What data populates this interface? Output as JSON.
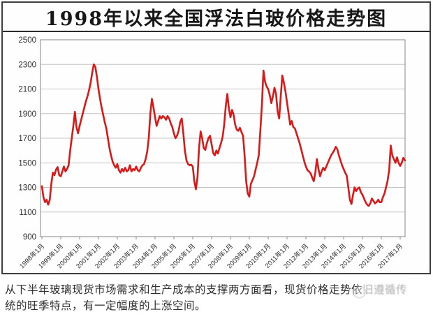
{
  "title": "1998年以来全国浮法白玻价格走势图",
  "chart_data": {
    "type": "line",
    "title": "1998年以来全国浮法白玻价格走势图",
    "series_name": "全国浮法白玻价格",
    "line_color": "#d91818",
    "grid": true,
    "gridline_color": "#c4c4c4",
    "plot_border_color": "#999999",
    "ylim": [
      900,
      2500
    ],
    "y_ticks": [
      900,
      1100,
      1300,
      1500,
      1700,
      1900,
      2100,
      2300,
      2500
    ],
    "x_tick_labels": [
      "1998年1月",
      "1999年1月",
      "2000年1月",
      "2001年1月",
      "2002年1月",
      "2003年1月",
      "2004年1月",
      "2005年1月",
      "2006年1月",
      "2007年1月",
      "2008年1月",
      "2009年1月",
      "2010年1月",
      "2011年1月",
      "2012年1月",
      "2013年1月",
      "2014年1月",
      "2015年1月",
      "2016年1月",
      "2017年1月"
    ],
    "x_start": "1998-01",
    "x_step_months": 1,
    "monthly_values": [
      1310,
      1220,
      1180,
      1200,
      1160,
      1200,
      1330,
      1420,
      1400,
      1445,
      1465,
      1400,
      1390,
      1430,
      1470,
      1430,
      1450,
      1480,
      1600,
      1700,
      1800,
      1915,
      1790,
      1740,
      1800,
      1850,
      1900,
      1950,
      2000,
      2040,
      2090,
      2150,
      2230,
      2300,
      2280,
      2200,
      2100,
      2020,
      1950,
      1890,
      1830,
      1780,
      1700,
      1620,
      1560,
      1510,
      1480,
      1460,
      1490,
      1440,
      1420,
      1450,
      1430,
      1460,
      1430,
      1440,
      1480,
      1430,
      1450,
      1440,
      1470,
      1440,
      1430,
      1460,
      1480,
      1490,
      1530,
      1590,
      1700,
      1900,
      2020,
      1950,
      1870,
      1800,
      1840,
      1880,
      1860,
      1880,
      1870,
      1850,
      1880,
      1860,
      1820,
      1790,
      1740,
      1700,
      1720,
      1760,
      1830,
      1860,
      1740,
      1600,
      1520,
      1490,
      1480,
      1485,
      1470,
      1350,
      1285,
      1380,
      1620,
      1755,
      1700,
      1620,
      1605,
      1660,
      1700,
      1720,
      1650,
      1580,
      1560,
      1600,
      1575,
      1620,
      1660,
      1710,
      1810,
      1960,
      2060,
      1940,
      1870,
      1930,
      1890,
      1810,
      1770,
      1760,
      1785,
      1750,
      1720,
      1560,
      1350,
      1250,
      1225,
      1330,
      1360,
      1390,
      1445,
      1500,
      1560,
      1760,
      1970,
      2250,
      2160,
      2120,
      2100,
      2050,
      1985,
      2040,
      2110,
      2060,
      1920,
      1860,
      2040,
      2210,
      2150,
      2080,
      1990,
      1900,
      1810,
      1840,
      1790,
      1780,
      1740,
      1700,
      1660,
      1610,
      1560,
      1510,
      1470,
      1440,
      1430,
      1415,
      1380,
      1350,
      1420,
      1530,
      1450,
      1390,
      1430,
      1460,
      1440,
      1470,
      1500,
      1530,
      1560,
      1580,
      1600,
      1630,
      1610,
      1560,
      1520,
      1480,
      1450,
      1420,
      1395,
      1300,
      1200,
      1165,
      1240,
      1300,
      1270,
      1290,
      1300,
      1260,
      1240,
      1210,
      1180,
      1160,
      1150,
      1170,
      1210,
      1190,
      1170,
      1180,
      1200,
      1180,
      1180,
      1220,
      1250,
      1300,
      1355,
      1440,
      1640,
      1560,
      1530,
      1500,
      1545,
      1500,
      1475,
      1500,
      1540,
      1520
    ]
  },
  "footer": {
    "line1_visible": "从下半年玻璃现货市场需求和生产成本的支撑两方面看，现货价格走势依",
    "line1_obscured": "旧遵循传",
    "line2": "统的旺季特点，有一定幅度的上涨空间。"
  }
}
